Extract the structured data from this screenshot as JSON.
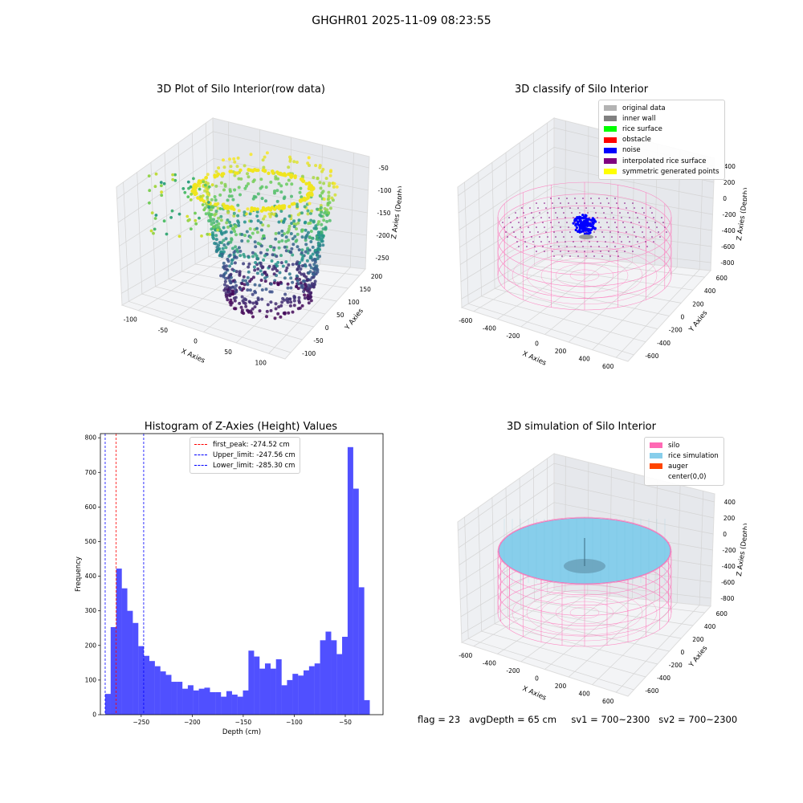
{
  "figure": {
    "suptitle": "GHGHR01 2025-11-09 08:23:55",
    "footer": {
      "flag": "flag = 23",
      "avg_depth": "avgDepth = 65 cm",
      "sv1": "sv1 = 700~2300",
      "sv2": "sv2 = 700~2300"
    },
    "colors": {
      "silo": "#ff69b4",
      "rice": "#87ceeb",
      "auger": "#ff4500",
      "noise": "#0000ff",
      "hist": "#5050ff"
    }
  },
  "panels": {
    "raw": {
      "title": "3D Plot of Silo Interior(row data)",
      "xlabel": "X Axies",
      "ylabel": "Y Axies",
      "zlabel": "Z Axies (Depth)",
      "xticks": [
        "-100",
        "-50",
        "0",
        "50",
        "100"
      ],
      "yticks": [
        "-100",
        "-50",
        "0",
        "50",
        "100",
        "150",
        "200"
      ],
      "zticks": [
        "-50",
        "-100",
        "-150",
        "-200",
        "-250"
      ],
      "colormap": "viridis"
    },
    "classify": {
      "title": "3D classify of Silo Interior",
      "xlabel": "X Axies",
      "ylabel": "Y Axies",
      "zlabel": "Z Axies (Depth)",
      "xticks": [
        "-600",
        "-400",
        "-200",
        "0",
        "200",
        "400",
        "600"
      ],
      "yticks": [
        "-600",
        "-400",
        "-200",
        "0",
        "200",
        "400",
        "600"
      ],
      "zticks": [
        "400",
        "200",
        "0",
        "-200",
        "-400",
        "-600",
        "-800"
      ],
      "legend": [
        {
          "label": "original data",
          "color": "#b3b3b3"
        },
        {
          "label": "inner wall",
          "color": "#808080"
        },
        {
          "label": "rice surface",
          "color": "#00ff00"
        },
        {
          "label": "obstacle",
          "color": "#ff0000"
        },
        {
          "label": "noise",
          "color": "#0000ff"
        },
        {
          "label": "interpolated rice surface",
          "color": "#800080"
        },
        {
          "label": "symmetric generated points",
          "color": "#ffff00"
        }
      ]
    },
    "simulation": {
      "title": "3D simulation of Silo Interior",
      "xlabel": "X Axies",
      "ylabel": "Y Axies",
      "zlabel": "Z Axies (Depth)",
      "xticks": [
        "-600",
        "-400",
        "-200",
        "0",
        "200",
        "400",
        "600"
      ],
      "yticks": [
        "-600",
        "-400",
        "-200",
        "0",
        "200",
        "400",
        "600"
      ],
      "zticks": [
        "400",
        "200",
        "0",
        "-200",
        "-400",
        "-600",
        "-800"
      ],
      "legend": [
        {
          "label": "silo",
          "color": "#ff69b4"
        },
        {
          "label": "rice simulation",
          "color": "#87ceeb"
        },
        {
          "label": "auger",
          "color": "#ff4500"
        },
        {
          "label": "center(0,0)",
          "color": "transparent"
        }
      ]
    }
  },
  "chart_data": {
    "type": "bar",
    "title": "Histogram of Z-Axies (Height) Values",
    "xlabel": "Depth (cm)",
    "ylabel": "Frequency",
    "xlim": [
      -290,
      -13
    ],
    "ylim": [
      0,
      812
    ],
    "xticks": [
      -250,
      -200,
      -150,
      -100,
      -50
    ],
    "yticks": [
      0,
      100,
      200,
      300,
      400,
      500,
      600,
      700,
      800
    ],
    "bin_start": -285.3,
    "bin_width": 5.4,
    "values": [
      60,
      253,
      422,
      365,
      300,
      265,
      198,
      170,
      155,
      140,
      125,
      115,
      95,
      95,
      75,
      85,
      70,
      75,
      78,
      65,
      65,
      52,
      68,
      58,
      52,
      70,
      185,
      168,
      133,
      148,
      133,
      160,
      85,
      100,
      118,
      113,
      128,
      140,
      148,
      215,
      240,
      215,
      175,
      225,
      773,
      653,
      368,
      42
    ],
    "vlines": [
      {
        "label": "first_peak: -274.52 cm",
        "x": -274.52,
        "color": "#ff0000"
      },
      {
        "label": "Upper_limit: -247.56 cm",
        "x": -247.56,
        "color": "#0000ff"
      },
      {
        "label": "Lower_limit: -285.30 cm",
        "x": -285.3,
        "color": "#0000ff"
      }
    ],
    "legend_position": "upper center"
  }
}
